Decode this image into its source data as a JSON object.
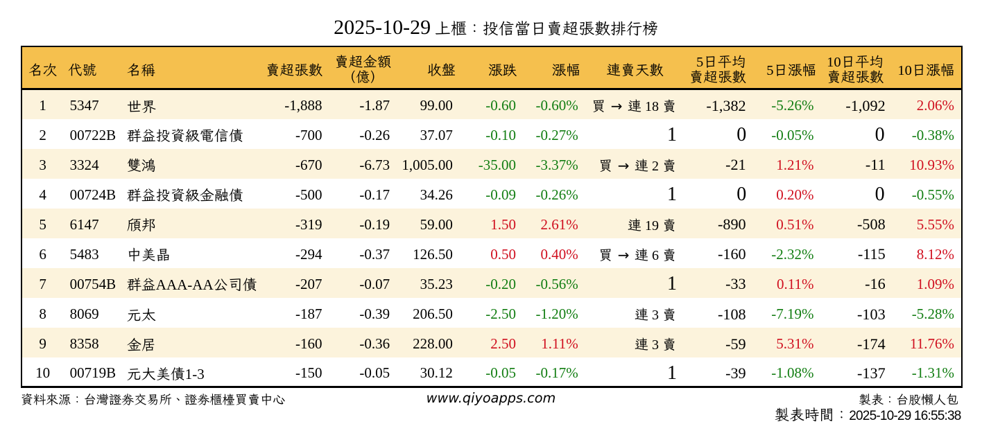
{
  "title": {
    "date": "2025-10-29",
    "text": "上櫃：投信當日賣超張數排行榜"
  },
  "colors": {
    "up_red": "#d00f1f",
    "down_green": "#117d11",
    "header_amber": "#f5c04e",
    "row_cream": "#fcf3dc",
    "border_black": "#000000"
  },
  "table": {
    "columns": [
      {
        "key": "rank",
        "label": "名次"
      },
      {
        "key": "code",
        "label": "代號"
      },
      {
        "key": "name",
        "label": "名稱"
      },
      {
        "key": "sell_lots",
        "label": "賣超張數"
      },
      {
        "key": "sell_amount",
        "label": "賣超金額",
        "label2": "（億）"
      },
      {
        "key": "close",
        "label": "收盤"
      },
      {
        "key": "change",
        "label": "漲跌"
      },
      {
        "key": "change_pct",
        "label": "漲幅"
      },
      {
        "key": "streak",
        "label": "連賣天數"
      },
      {
        "key": "avg5",
        "label": "5日平均",
        "label2": "賣超張數"
      },
      {
        "key": "pct5",
        "label": "5日漲幅"
      },
      {
        "key": "avg10",
        "label": "10日平均",
        "label2": "賣超張數"
      },
      {
        "key": "pct10",
        "label": "10日漲幅"
      }
    ],
    "rows": [
      {
        "rank": "1",
        "code": "5347",
        "name": "世界",
        "sell_lots": "-1,888",
        "sell_amount": "-1.87",
        "close": "99.00",
        "change": "-0.60",
        "change_dir": "down",
        "change_pct": "-0.60%",
        "change_pct_dir": "down",
        "streak": "買 → 連 18 賣",
        "avg5": "-1,382",
        "pct5": "-5.26%",
        "pct5_dir": "down",
        "avg10": "-1,092",
        "pct10": "2.06%",
        "pct10_dir": "up"
      },
      {
        "rank": "2",
        "code": "00722B",
        "name": "群益投資級電信債",
        "sell_lots": "-700",
        "sell_amount": "-0.26",
        "close": "37.07",
        "change": "-0.10",
        "change_dir": "down",
        "change_pct": "-0.27%",
        "change_pct_dir": "down",
        "streak": "1",
        "avg5": "0",
        "pct5": "-0.05%",
        "pct5_dir": "down",
        "avg10": "0",
        "pct10": "-0.38%",
        "pct10_dir": "down"
      },
      {
        "rank": "3",
        "code": "3324",
        "name": "雙鴻",
        "sell_lots": "-670",
        "sell_amount": "-6.73",
        "close": "1,005.00",
        "change": "-35.00",
        "change_dir": "down",
        "change_pct": "-3.37%",
        "change_pct_dir": "down",
        "streak": "買 → 連 2 賣",
        "avg5": "-21",
        "pct5": "1.21%",
        "pct5_dir": "up",
        "avg10": "-11",
        "pct10": "10.93%",
        "pct10_dir": "up"
      },
      {
        "rank": "4",
        "code": "00724B",
        "name": "群益投資級金融債",
        "sell_lots": "-500",
        "sell_amount": "-0.17",
        "close": "34.26",
        "change": "-0.09",
        "change_dir": "down",
        "change_pct": "-0.26%",
        "change_pct_dir": "down",
        "streak": "1",
        "avg5": "0",
        "pct5": "0.20%",
        "pct5_dir": "up",
        "avg10": "0",
        "pct10": "-0.55%",
        "pct10_dir": "down"
      },
      {
        "rank": "5",
        "code": "6147",
        "name": "頎邦",
        "sell_lots": "-319",
        "sell_amount": "-0.19",
        "close": "59.00",
        "change": "1.50",
        "change_dir": "up",
        "change_pct": "2.61%",
        "change_pct_dir": "up",
        "streak": "連 19 賣",
        "avg5": "-890",
        "pct5": "0.51%",
        "pct5_dir": "up",
        "avg10": "-508",
        "pct10": "5.55%",
        "pct10_dir": "up"
      },
      {
        "rank": "6",
        "code": "5483",
        "name": "中美晶",
        "sell_lots": "-294",
        "sell_amount": "-0.37",
        "close": "126.50",
        "change": "0.50",
        "change_dir": "up",
        "change_pct": "0.40%",
        "change_pct_dir": "up",
        "streak": "買 → 連 6 賣",
        "avg5": "-160",
        "pct5": "-2.32%",
        "pct5_dir": "down",
        "avg10": "-115",
        "pct10": "8.12%",
        "pct10_dir": "up"
      },
      {
        "rank": "7",
        "code": "00754B",
        "name": "群益AAA-AA公司債",
        "sell_lots": "-207",
        "sell_amount": "-0.07",
        "close": "35.23",
        "change": "-0.20",
        "change_dir": "down",
        "change_pct": "-0.56%",
        "change_pct_dir": "down",
        "streak": "1",
        "avg5": "-33",
        "pct5": "0.11%",
        "pct5_dir": "up",
        "avg10": "-16",
        "pct10": "1.09%",
        "pct10_dir": "up"
      },
      {
        "rank": "8",
        "code": "8069",
        "name": "元太",
        "sell_lots": "-187",
        "sell_amount": "-0.39",
        "close": "206.50",
        "change": "-2.50",
        "change_dir": "down",
        "change_pct": "-1.20%",
        "change_pct_dir": "down",
        "streak": "連 3 賣",
        "avg5": "-108",
        "pct5": "-7.19%",
        "pct5_dir": "down",
        "avg10": "-103",
        "pct10": "-5.28%",
        "pct10_dir": "down"
      },
      {
        "rank": "9",
        "code": "8358",
        "name": "金居",
        "sell_lots": "-160",
        "sell_amount": "-0.36",
        "close": "228.00",
        "change": "2.50",
        "change_dir": "up",
        "change_pct": "1.11%",
        "change_pct_dir": "up",
        "streak": "連 3 賣",
        "avg5": "-59",
        "pct5": "5.31%",
        "pct5_dir": "up",
        "avg10": "-174",
        "pct10": "11.76%",
        "pct10_dir": "up"
      },
      {
        "rank": "10",
        "code": "00719B",
        "name": "元大美債1-3",
        "sell_lots": "-150",
        "sell_amount": "-0.05",
        "close": "30.12",
        "change": "-0.05",
        "change_dir": "down",
        "change_pct": "-0.17%",
        "change_pct_dir": "down",
        "streak": "1",
        "avg5": "-39",
        "pct5": "-1.08%",
        "pct5_dir": "down",
        "avg10": "-137",
        "pct10": "-1.31%",
        "pct10_dir": "down"
      }
    ]
  },
  "chart_data": {
    "type": "table",
    "title": "2025-10-29 上櫃：投信當日賣超張數排行榜",
    "columns": [
      "名次",
      "代號",
      "名稱",
      "賣超張數",
      "賣超金額（億）",
      "收盤",
      "漲跌",
      "漲幅",
      "連賣天數",
      "5日平均賣超張數",
      "5日漲幅",
      "10日平均賣超張數",
      "10日漲幅"
    ],
    "rows": [
      [
        "1",
        "5347",
        "世界",
        "-1,888",
        "-1.87",
        "99.00",
        "-0.60",
        "-0.60%",
        "買 → 連 18 賣",
        "-1,382",
        "-5.26%",
        "-1,092",
        "2.06%"
      ],
      [
        "2",
        "00722B",
        "群益投資級電信債",
        "-700",
        "-0.26",
        "37.07",
        "-0.10",
        "-0.27%",
        "1",
        "0",
        "-0.05%",
        "0",
        "-0.38%"
      ],
      [
        "3",
        "3324",
        "雙鴻",
        "-670",
        "-6.73",
        "1,005.00",
        "-35.00",
        "-3.37%",
        "買 → 連 2 賣",
        "-21",
        "1.21%",
        "-11",
        "10.93%"
      ],
      [
        "4",
        "00724B",
        "群益投資級金融債",
        "-500",
        "-0.17",
        "34.26",
        "-0.09",
        "-0.26%",
        "1",
        "0",
        "0.20%",
        "0",
        "-0.55%"
      ],
      [
        "5",
        "6147",
        "頎邦",
        "-319",
        "-0.19",
        "59.00",
        "1.50",
        "2.61%",
        "連 19 賣",
        "-890",
        "0.51%",
        "-508",
        "5.55%"
      ],
      [
        "6",
        "5483",
        "中美晶",
        "-294",
        "-0.37",
        "126.50",
        "0.50",
        "0.40%",
        "買 → 連 6 賣",
        "-160",
        "-2.32%",
        "-115",
        "8.12%"
      ],
      [
        "7",
        "00754B",
        "群益AAA-AA公司債",
        "-207",
        "-0.07",
        "35.23",
        "-0.20",
        "-0.56%",
        "1",
        "-33",
        "0.11%",
        "-16",
        "1.09%"
      ],
      [
        "8",
        "8069",
        "元太",
        "-187",
        "-0.39",
        "206.50",
        "-2.50",
        "-1.20%",
        "連 3 賣",
        "-108",
        "-7.19%",
        "-103",
        "-5.28%"
      ],
      [
        "9",
        "8358",
        "金居",
        "-160",
        "-0.36",
        "228.00",
        "2.50",
        "1.11%",
        "連 3 賣",
        "-59",
        "5.31%",
        "-174",
        "11.76%"
      ],
      [
        "10",
        "00719B",
        "元大美債1-3",
        "-150",
        "-0.05",
        "30.12",
        "-0.05",
        "-0.17%",
        "1",
        "-39",
        "-1.08%",
        "-137",
        "-1.31%"
      ]
    ]
  },
  "footer": {
    "source": "資料來源：台灣證券交易所、證券櫃檯買賣中心",
    "website": "www.qiyoapps.com",
    "maker": "製表：台股懶人包",
    "made_at_label": "製表時間：",
    "made_at_value": "2025-10-29 16:55:38"
  }
}
